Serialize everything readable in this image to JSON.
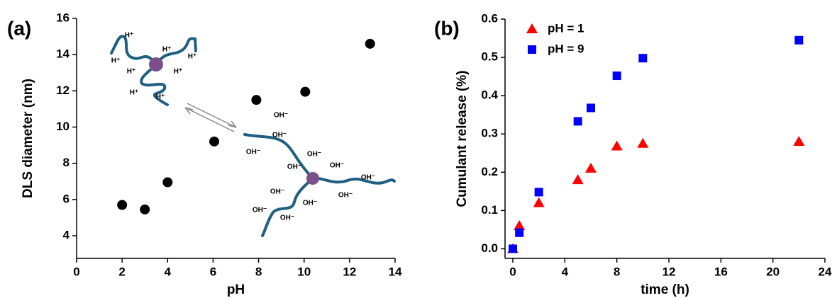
{
  "chart_data": [
    {
      "type": "scatter",
      "panel_label": "(a)",
      "xlabel": "pH",
      "ylabel": "DLS diameter (nm)",
      "xlim": [
        0,
        14
      ],
      "ylim": [
        2.75,
        16
      ],
      "xticks": [
        0,
        2,
        4,
        6,
        8,
        10,
        12,
        14
      ],
      "yticks": [
        4,
        6,
        8,
        10,
        12,
        14,
        16
      ],
      "series": [
        {
          "color": "#000000",
          "marker": "circle",
          "x": [
            2,
            3,
            4,
            6.05,
            7.9,
            10.05,
            12.9
          ],
          "values": [
            5.7,
            5.45,
            6.95,
            9.2,
            11.5,
            11.95,
            14.6
          ]
        }
      ],
      "annotations": {
        "acid_labels": [
          "H⁺",
          "H⁺",
          "H⁺",
          "H⁺",
          "H⁺",
          "H⁺",
          "H⁺",
          "H⁺"
        ],
        "base_labels": [
          "OH⁻",
          "OH⁻",
          "OH⁻",
          "OH⁻",
          "OH⁻",
          "OH⁻",
          "OH⁻",
          "OH⁻",
          "OH⁻",
          "OH⁻",
          "OH⁻",
          "OH⁻"
        ]
      }
    },
    {
      "type": "scatter",
      "panel_label": "(b)",
      "xlabel": "time (h)",
      "ylabel": "Cumulant release (%)",
      "xlim": [
        -0.6,
        24
      ],
      "ylim": [
        -0.025,
        0.6
      ],
      "xticks": [
        0,
        4,
        8,
        12,
        16,
        20,
        24
      ],
      "yticks": [
        {
          "value": 0,
          "label": "0.0"
        },
        0.1,
        0.2,
        0.3,
        0.4,
        0.5,
        0.6
      ],
      "legend": "upper left",
      "series": [
        {
          "name": "pH = 1",
          "color": "#ff0000",
          "marker": "triangle",
          "x": [
            0,
            0.5,
            2,
            5,
            6,
            8,
            10,
            22
          ],
          "values": [
            0,
            0.06,
            0.12,
            0.18,
            0.21,
            0.268,
            0.275,
            0.28
          ]
        },
        {
          "name": "pH = 9",
          "color": "#0000ff",
          "marker": "square",
          "x": [
            0,
            0.5,
            2,
            5,
            6,
            8,
            10,
            22
          ],
          "values": [
            0,
            0.042,
            0.148,
            0.333,
            0.368,
            0.452,
            0.498,
            0.545
          ]
        }
      ]
    }
  ]
}
